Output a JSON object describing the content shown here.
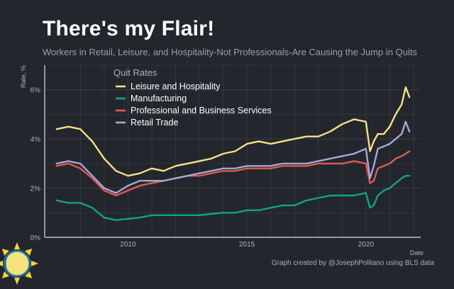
{
  "header": {
    "title": "There's my Flair!",
    "subtitle": "Workers in Retail, Leisure, and Hospitality-Not Professionals-Are Causing the Jump in Quits"
  },
  "footer": {
    "credit": "Graph created by @JosephPolitano using BLS data"
  },
  "colors": {
    "background": "#23262d",
    "grid": "#3a3e46",
    "text": "#c9ccd1",
    "axis_line": "#e0e0e0"
  },
  "chart_data": {
    "type": "line",
    "title": "There's my Flair!",
    "subtitle": "Workers in Retail, Leisure, and Hospitality-Not Professionals-Are Causing the Jump in Quits",
    "xlabel": "Date",
    "ylabel": "Rate, %",
    "xlim": [
      2006.5,
      2022.3
    ],
    "ylim": [
      0,
      7
    ],
    "x_ticks": [
      2010,
      2015,
      2020
    ],
    "x_tick_labels": [
      "2010",
      "2015",
      "2020"
    ],
    "y_ticks": [
      0,
      2,
      4,
      6
    ],
    "y_tick_labels": [
      "0%",
      "2%",
      "4%",
      "6%"
    ],
    "legend": {
      "title": "Quit Rates",
      "position": "top-left"
    },
    "x": [
      2007.0,
      2007.5,
      2008.0,
      2008.5,
      2009.0,
      2009.5,
      2010.0,
      2010.5,
      2011.0,
      2011.5,
      2012.0,
      2012.5,
      2013.0,
      2013.5,
      2014.0,
      2014.5,
      2015.0,
      2015.5,
      2016.0,
      2016.5,
      2017.0,
      2017.5,
      2018.0,
      2018.5,
      2019.0,
      2019.5,
      2020.0,
      2020.17,
      2020.33,
      2020.5,
      2020.75,
      2021.0,
      2021.25,
      2021.5,
      2021.67,
      2021.83
    ],
    "series": [
      {
        "name": "Leisure and Hospitality",
        "color": "#f5e08a",
        "values": [
          4.4,
          4.5,
          4.4,
          3.9,
          3.2,
          2.7,
          2.5,
          2.6,
          2.8,
          2.7,
          2.9,
          3.0,
          3.1,
          3.2,
          3.4,
          3.5,
          3.8,
          3.9,
          3.8,
          3.9,
          4.0,
          4.1,
          4.1,
          4.3,
          4.6,
          4.8,
          4.7,
          3.5,
          3.9,
          4.2,
          4.2,
          4.5,
          5.0,
          5.4,
          6.1,
          5.7
        ]
      },
      {
        "name": "Manufacturing",
        "color": "#12a38a",
        "values": [
          1.5,
          1.4,
          1.4,
          1.2,
          0.8,
          0.7,
          0.75,
          0.8,
          0.9,
          0.9,
          0.9,
          0.9,
          0.9,
          0.95,
          1.0,
          1.0,
          1.1,
          1.1,
          1.2,
          1.3,
          1.3,
          1.5,
          1.6,
          1.7,
          1.7,
          1.7,
          1.8,
          1.2,
          1.3,
          1.7,
          1.9,
          2.0,
          2.2,
          2.4,
          2.5,
          2.5
        ]
      },
      {
        "name": "Professional and Business Services",
        "color": "#e05a52",
        "values": [
          2.9,
          3.0,
          2.8,
          2.4,
          1.9,
          1.7,
          1.9,
          2.1,
          2.2,
          2.3,
          2.4,
          2.5,
          2.5,
          2.6,
          2.7,
          2.7,
          2.8,
          2.8,
          2.8,
          2.9,
          2.9,
          2.9,
          3.0,
          3.0,
          3.0,
          3.1,
          3.0,
          2.2,
          2.3,
          2.8,
          2.9,
          3.0,
          3.2,
          3.3,
          3.4,
          3.5
        ]
      },
      {
        "name": "Retail Trade",
        "color": "#a5a8d6",
        "values": [
          3.0,
          3.1,
          3.0,
          2.5,
          2.0,
          1.8,
          2.1,
          2.3,
          2.3,
          2.3,
          2.4,
          2.5,
          2.6,
          2.7,
          2.8,
          2.8,
          2.9,
          2.9,
          2.9,
          3.0,
          3.0,
          3.0,
          3.1,
          3.2,
          3.3,
          3.4,
          3.6,
          2.4,
          2.9,
          3.6,
          3.7,
          3.8,
          4.0,
          4.2,
          4.7,
          4.3
        ]
      }
    ]
  }
}
